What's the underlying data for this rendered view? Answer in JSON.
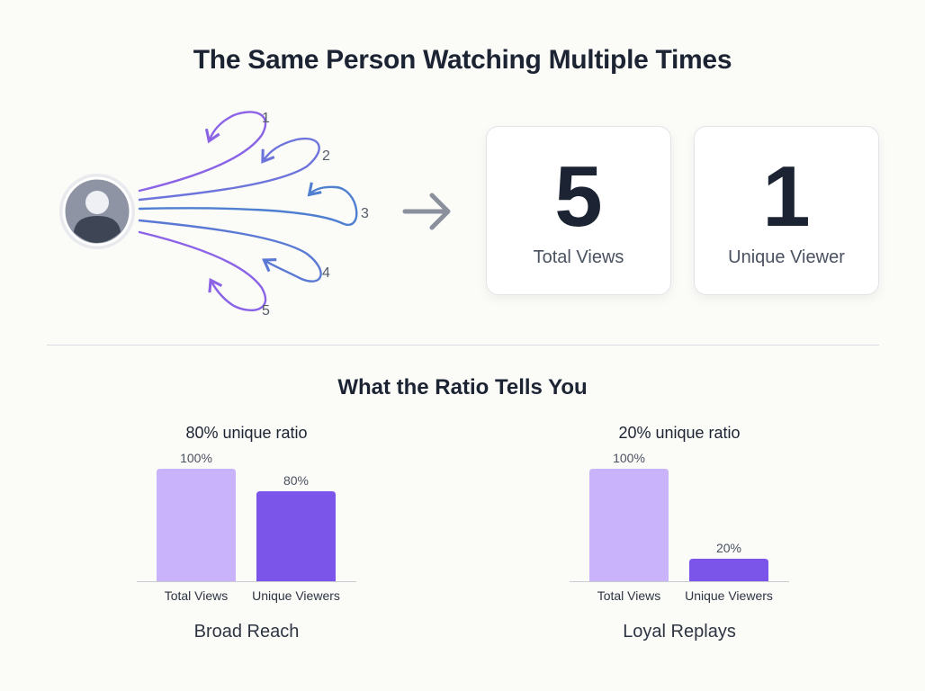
{
  "header": {
    "title": "The Same Person Watching Multiple Times"
  },
  "diagram": {
    "loop_labels": [
      "1",
      "2",
      "3",
      "4",
      "5"
    ]
  },
  "stats": [
    {
      "value": "5",
      "label": "Total Views"
    },
    {
      "value": "1",
      "label": "Unique Viewer"
    }
  ],
  "section": {
    "title": "What the Ratio Tells You"
  },
  "colors": {
    "total": "#c9b3fa",
    "unique": "#7b55ea",
    "loops_top": "#8b63e6",
    "loops_mid": "#4f7fd1"
  },
  "chart_data": [
    {
      "type": "bar",
      "title": "80% unique ratio",
      "categories": [
        "Total Views",
        "Unique Viewers"
      ],
      "values": [
        100,
        80
      ],
      "data_labels": [
        "100%",
        "80%"
      ],
      "ylim": [
        0,
        100
      ],
      "caption": "Broad Reach"
    },
    {
      "type": "bar",
      "title": "20% unique ratio",
      "categories": [
        "Total Views",
        "Unique Viewers"
      ],
      "values": [
        100,
        20
      ],
      "data_labels": [
        "100%",
        "20%"
      ],
      "ylim": [
        0,
        100
      ],
      "caption": "Loyal Replays"
    }
  ]
}
